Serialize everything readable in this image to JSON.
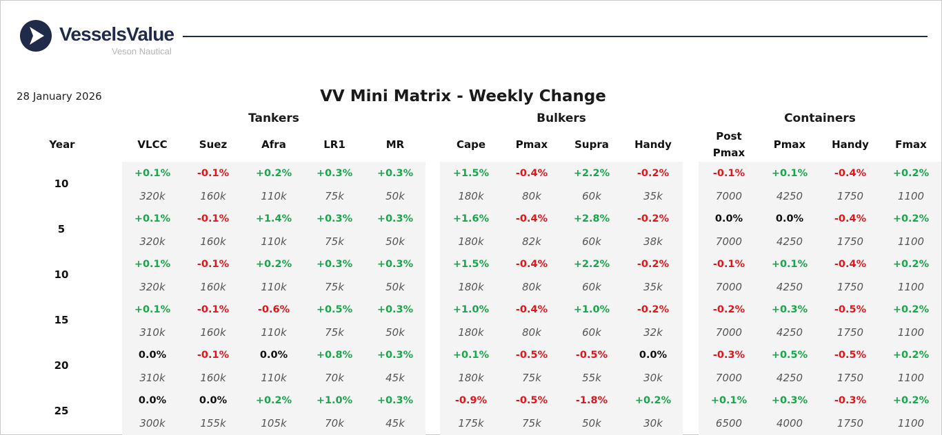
{
  "brand": {
    "name": "VesselsValue",
    "subtitle": "Veson Nautical",
    "color": "#1f2b48"
  },
  "date": "28 January 2026",
  "title": "VV Mini Matrix - Weekly Change",
  "groups": [
    {
      "label": "Tankers"
    },
    {
      "label": "Bulkers"
    },
    {
      "label": "Containers"
    }
  ],
  "year_header": "Year",
  "columns": [
    {
      "label": "VLCC",
      "group": 0
    },
    {
      "label": "Suez",
      "group": 0
    },
    {
      "label": "Afra",
      "group": 0
    },
    {
      "label": "LR1",
      "group": 0
    },
    {
      "label": "MR",
      "group": 0
    },
    {
      "label": "Cape",
      "group": 1
    },
    {
      "label": "Pmax",
      "group": 1
    },
    {
      "label": "Supra",
      "group": 1
    },
    {
      "label": "Handy",
      "group": 1
    },
    {
      "label": "Post Pmax",
      "group": 2
    },
    {
      "label": "Pmax",
      "group": 2
    },
    {
      "label": "Handy",
      "group": 2
    },
    {
      "label": "Fmax",
      "group": 2
    }
  ],
  "colors": {
    "positive": "#1aa64a",
    "negative": "#e0161b",
    "neutral": "#111111"
  },
  "rows": [
    {
      "year": "10",
      "changes": [
        "+0.1%",
        "-0.1%",
        "+0.2%",
        "+0.3%",
        "+0.3%",
        "+1.5%",
        "-0.4%",
        "+2.2%",
        "-0.2%",
        "-0.1%",
        "+0.1%",
        "-0.4%",
        "+0.2%"
      ],
      "values": [
        "320k",
        "160k",
        "110k",
        "75k",
        "50k",
        "180k",
        "80k",
        "60k",
        "35k",
        "7000",
        "4250",
        "1750",
        "1100"
      ]
    },
    {
      "year": "5",
      "changes": [
        "+0.1%",
        "-0.1%",
        "+1.4%",
        "+0.3%",
        "+0.3%",
        "+1.6%",
        "-0.4%",
        "+2.8%",
        "-0.2%",
        "0.0%",
        "0.0%",
        "-0.4%",
        "+0.2%"
      ],
      "values": [
        "320k",
        "160k",
        "110k",
        "75k",
        "50k",
        "180k",
        "82k",
        "60k",
        "38k",
        "7000",
        "4250",
        "1750",
        "1100"
      ]
    },
    {
      "year": "10",
      "changes": [
        "+0.1%",
        "-0.1%",
        "+0.2%",
        "+0.3%",
        "+0.3%",
        "+1.5%",
        "-0.4%",
        "+2.2%",
        "-0.2%",
        "-0.1%",
        "+0.1%",
        "-0.4%",
        "+0.2%"
      ],
      "values": [
        "320k",
        "160k",
        "110k",
        "75k",
        "50k",
        "180k",
        "80k",
        "60k",
        "35k",
        "7000",
        "4250",
        "1750",
        "1100"
      ]
    },
    {
      "year": "15",
      "changes": [
        "+0.1%",
        "-0.1%",
        "-0.6%",
        "+0.5%",
        "+0.3%",
        "+1.0%",
        "-0.4%",
        "+1.0%",
        "-0.2%",
        "-0.2%",
        "+0.3%",
        "-0.5%",
        "+0.2%"
      ],
      "values": [
        "310k",
        "160k",
        "110k",
        "75k",
        "50k",
        "180k",
        "80k",
        "60k",
        "32k",
        "7000",
        "4250",
        "1750",
        "1100"
      ]
    },
    {
      "year": "20",
      "changes": [
        "0.0%",
        "-0.1%",
        "0.0%",
        "+0.8%",
        "+0.3%",
        "+0.1%",
        "-0.5%",
        "-0.5%",
        "0.0%",
        "-0.3%",
        "+0.5%",
        "-0.5%",
        "+0.2%"
      ],
      "values": [
        "310k",
        "160k",
        "110k",
        "70k",
        "45k",
        "180k",
        "75k",
        "55k",
        "30k",
        "7000",
        "4250",
        "1750",
        "1100"
      ]
    },
    {
      "year": "25",
      "changes": [
        "0.0%",
        "0.0%",
        "+0.2%",
        "+1.0%",
        "+0.3%",
        "-0.9%",
        "-0.5%",
        "-1.8%",
        "+0.2%",
        "+0.1%",
        "+0.3%",
        "-0.3%",
        "+0.2%"
      ],
      "values": [
        "300k",
        "155k",
        "105k",
        "70k",
        "45k",
        "175k",
        "75k",
        "50k",
        "30k",
        "6500",
        "4000",
        "1750",
        "1100"
      ]
    }
  ]
}
